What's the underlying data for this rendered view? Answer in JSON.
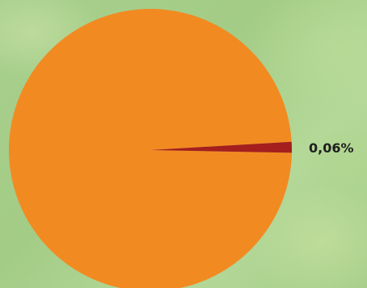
{
  "chart_data": {
    "type": "pie",
    "slices": [
      {
        "label": "",
        "value": 99.94,
        "color": "#f28a22"
      },
      {
        "label": "0,06%",
        "value": 0.06,
        "color": "#a41f1d"
      }
    ],
    "legend": "none"
  },
  "colors": {
    "background": "#a7cf8b",
    "major_slice": "#f28a22",
    "minor_slice": "#a41f1d"
  }
}
